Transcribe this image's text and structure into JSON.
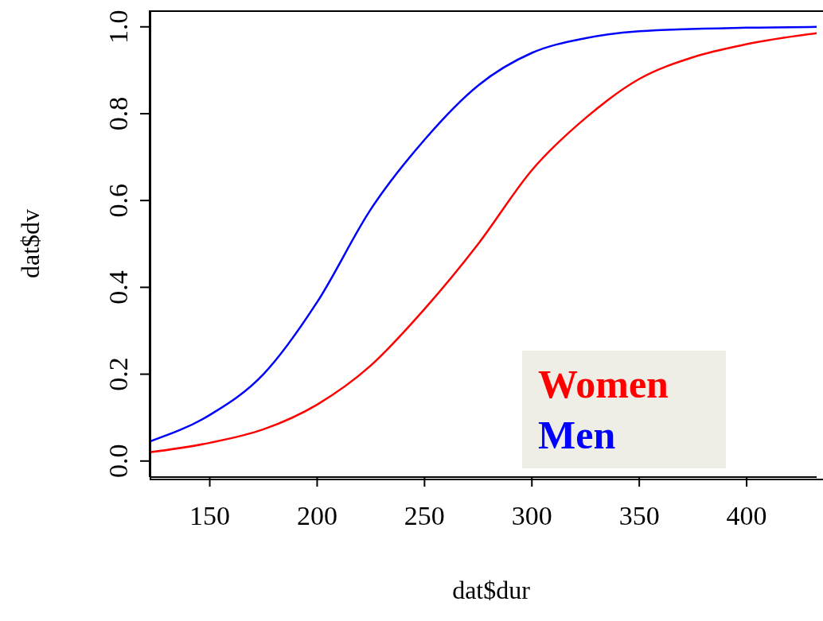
{
  "chart_data": {
    "type": "line",
    "xlabel": "dat$dur",
    "ylabel": "dat$dv",
    "xlim": [
      122,
      440
    ],
    "ylim": [
      -0.037,
      1.038
    ],
    "xticks": [
      150,
      200,
      250,
      300,
      350,
      400
    ],
    "yticks": [
      {
        "value": 0,
        "label": "0.0"
      },
      0.2,
      0.4,
      0.6,
      0.8,
      {
        "value": 1,
        "label": "1.0"
      }
    ],
    "legend": "bottom right",
    "grid": false,
    "series": [
      {
        "name": "Women",
        "color": "#ff0000",
        "x": [
          122,
          150,
          175,
          200,
          225,
          250,
          275,
          300,
          325,
          350,
          375,
          400,
          440
        ],
        "values": [
          0.02,
          0.042,
          0.073,
          0.13,
          0.22,
          0.35,
          0.5,
          0.67,
          0.79,
          0.88,
          0.93,
          0.96,
          0.99
        ]
      },
      {
        "name": "Men",
        "color": "#0000ff",
        "x": [
          122,
          150,
          175,
          200,
          225,
          250,
          275,
          300,
          325,
          350,
          400,
          440
        ],
        "values": [
          0.045,
          0.106,
          0.2,
          0.366,
          0.58,
          0.74,
          0.865,
          0.94,
          0.974,
          0.99,
          0.998,
          1.0
        ]
      }
    ]
  }
}
